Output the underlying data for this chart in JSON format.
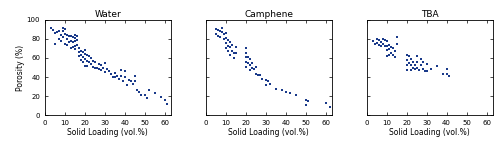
{
  "title_water": "Water",
  "title_camphene": "Camphene",
  "title_tba": "TBA",
  "xlabel": "Solid Loading (vol.%)",
  "ylabel": "Porosity (%)",
  "xlim": [
    0,
    63
  ],
  "ylim": [
    0,
    100
  ],
  "xticks": [
    0,
    10,
    20,
    30,
    40,
    50,
    60
  ],
  "yticks": [
    0,
    20,
    40,
    60,
    80,
    100
  ],
  "marker_color": "#1a3a8a",
  "marker_size": 2.5,
  "water_x": [
    3,
    4,
    5,
    5,
    6,
    7,
    7,
    8,
    8,
    9,
    9,
    9,
    10,
    10,
    10,
    11,
    11,
    11,
    12,
    12,
    13,
    13,
    13,
    14,
    14,
    14,
    15,
    15,
    15,
    15,
    15,
    16,
    16,
    16,
    17,
    17,
    17,
    18,
    18,
    18,
    19,
    19,
    19,
    20,
    20,
    20,
    20,
    21,
    21,
    21,
    22,
    22,
    23,
    23,
    24,
    24,
    25,
    25,
    26,
    27,
    27,
    28,
    28,
    29,
    30,
    30,
    31,
    32,
    33,
    34,
    35,
    35,
    36,
    37,
    38,
    38,
    39,
    40,
    40,
    41,
    42,
    43,
    44,
    45,
    45,
    46,
    47,
    48,
    50,
    51,
    52,
    55,
    58,
    60,
    61
  ],
  "water_y": [
    91,
    89,
    86,
    75,
    87,
    88,
    80,
    84,
    78,
    91,
    88,
    82,
    90,
    85,
    75,
    84,
    80,
    74,
    83,
    77,
    83,
    78,
    70,
    82,
    77,
    72,
    84,
    81,
    78,
    73,
    69,
    83,
    79,
    74,
    70,
    66,
    62,
    67,
    63,
    58,
    66,
    61,
    56,
    68,
    64,
    59,
    52,
    63,
    57,
    52,
    62,
    56,
    60,
    54,
    57,
    51,
    56,
    50,
    50,
    54,
    48,
    53,
    47,
    50,
    55,
    45,
    48,
    46,
    43,
    40,
    44,
    40,
    41,
    38,
    47,
    41,
    36,
    46,
    40,
    32,
    37,
    36,
    33,
    41,
    36,
    27,
    24,
    21,
    21,
    18,
    26,
    23,
    19,
    16,
    12
  ],
  "camphene_x": [
    5,
    5,
    6,
    6,
    7,
    7,
    8,
    8,
    9,
    9,
    10,
    10,
    10,
    10,
    11,
    11,
    11,
    12,
    12,
    12,
    13,
    13,
    14,
    14,
    15,
    15,
    20,
    20,
    20,
    20,
    20,
    21,
    21,
    22,
    22,
    22,
    23,
    23,
    24,
    25,
    25,
    26,
    27,
    28,
    30,
    30,
    31,
    32,
    35,
    38,
    40,
    42,
    45,
    50,
    50,
    51,
    60,
    62
  ],
  "camphene_y": [
    90,
    85,
    89,
    83,
    88,
    82,
    91,
    87,
    85,
    80,
    86,
    81,
    76,
    70,
    79,
    73,
    67,
    77,
    71,
    63,
    74,
    67,
    65,
    60,
    72,
    65,
    70,
    65,
    61,
    56,
    51,
    61,
    55,
    59,
    53,
    47,
    55,
    50,
    48,
    51,
    43,
    42,
    42,
    38,
    37,
    32,
    36,
    33,
    28,
    26,
    24,
    23,
    21,
    16,
    11,
    15,
    13,
    9
  ],
  "tba_x": [
    3,
    4,
    5,
    5,
    6,
    6,
    7,
    7,
    8,
    8,
    9,
    9,
    10,
    10,
    10,
    10,
    11,
    11,
    11,
    12,
    12,
    13,
    13,
    14,
    14,
    15,
    15,
    20,
    20,
    20,
    20,
    21,
    21,
    22,
    22,
    22,
    23,
    23,
    24,
    24,
    25,
    25,
    25,
    26,
    27,
    27,
    28,
    28,
    29,
    30,
    30,
    32,
    35,
    38,
    40,
    40,
    41
  ],
  "tba_y": [
    78,
    75,
    80,
    76,
    79,
    74,
    77,
    73,
    80,
    75,
    79,
    73,
    78,
    73,
    68,
    62,
    74,
    69,
    63,
    71,
    65,
    70,
    63,
    67,
    61,
    82,
    75,
    63,
    58,
    53,
    47,
    62,
    55,
    59,
    53,
    47,
    56,
    50,
    53,
    48,
    62,
    56,
    50,
    47,
    59,
    53,
    56,
    49,
    46,
    54,
    46,
    48,
    52,
    43,
    48,
    43,
    41
  ]
}
